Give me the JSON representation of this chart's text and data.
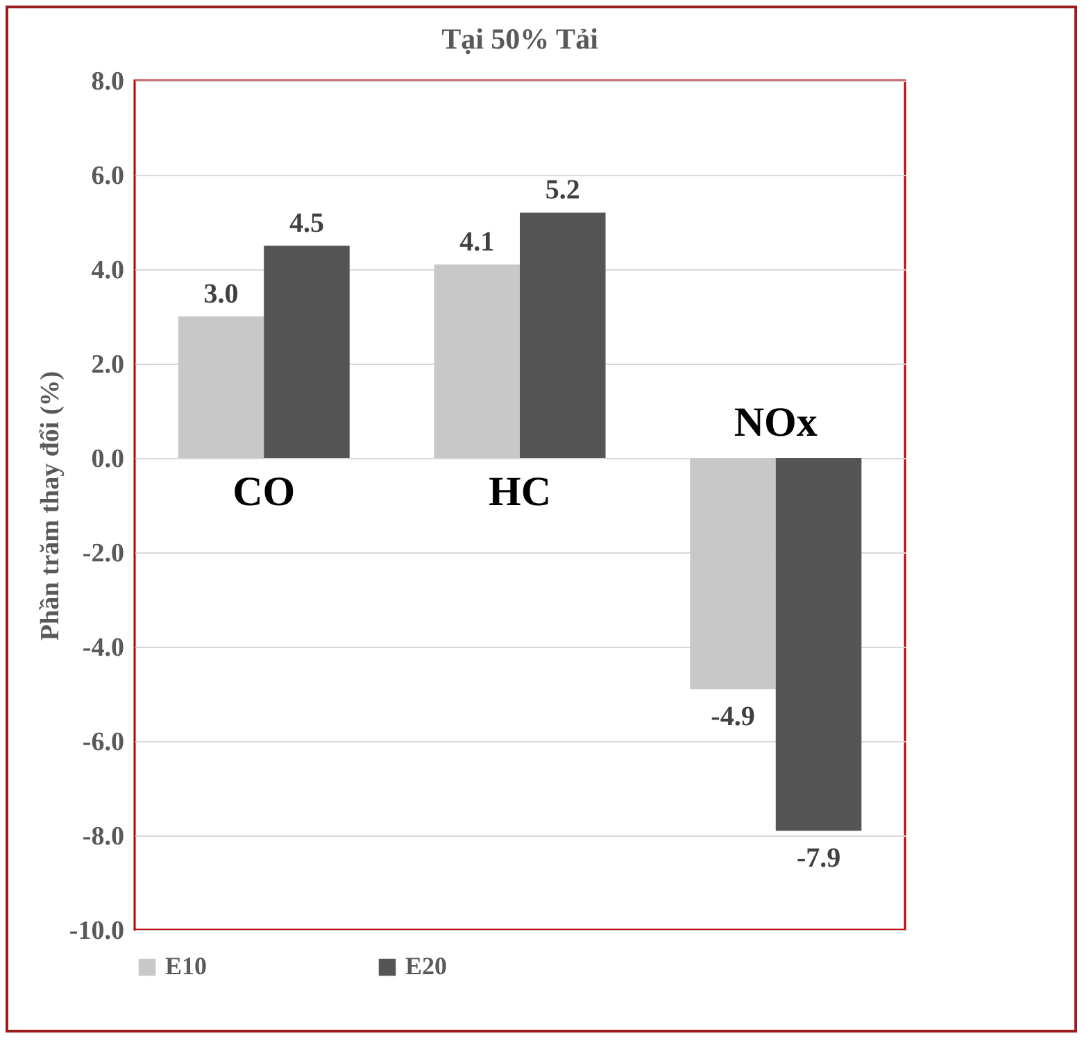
{
  "chart_data": {
    "type": "bar",
    "title": "Tại 50% Tải",
    "ylabel": "Phần trăm thay đổi (%)",
    "categories": [
      "CO",
      "HC",
      "NOx"
    ],
    "series": [
      {
        "name": "E10",
        "color": "#c8c8c8",
        "values": [
          3.0,
          4.1,
          -4.9
        ],
        "value_labels": [
          "3.0",
          "4.1",
          "-4.9"
        ]
      },
      {
        "name": "E20",
        "color": "#555555",
        "values": [
          4.5,
          5.2,
          -7.9
        ],
        "value_labels": [
          "4.5",
          "5.2",
          "-7.9"
        ]
      }
    ],
    "ylim": [
      -10,
      8
    ],
    "yticks": [
      {
        "value": -10,
        "label": "-10.0"
      },
      {
        "value": -8,
        "label": "-8.0"
      },
      {
        "value": -6,
        "label": "-6.0"
      },
      {
        "value": -4,
        "label": "-4.0"
      },
      {
        "value": -2,
        "label": "-2.0"
      },
      {
        "value": 0,
        "label": "0.0"
      },
      {
        "value": 2,
        "label": "2.0"
      },
      {
        "value": 4,
        "label": "4.0"
      },
      {
        "value": 6,
        "label": "6.0"
      },
      {
        "value": 8,
        "label": "8.0"
      }
    ],
    "grid": "y",
    "legend": "bottom"
  }
}
